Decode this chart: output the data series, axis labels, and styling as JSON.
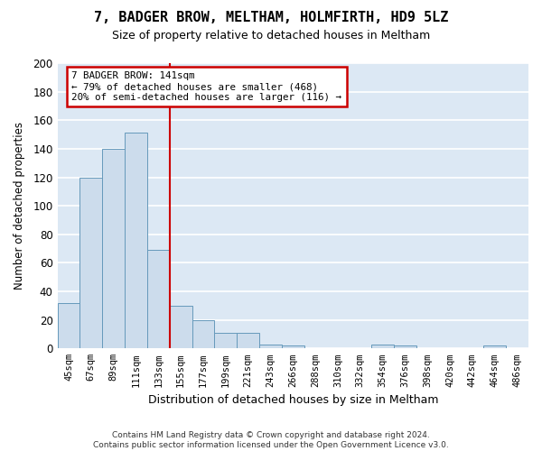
{
  "title1": "7, BADGER BROW, MELTHAM, HOLMFIRTH, HD9 5LZ",
  "title2": "Size of property relative to detached houses in Meltham",
  "xlabel": "Distribution of detached houses by size in Meltham",
  "ylabel": "Number of detached properties",
  "footer": "Contains HM Land Registry data © Crown copyright and database right 2024.\nContains public sector information licensed under the Open Government Licence v3.0.",
  "categories": [
    "45sqm",
    "67sqm",
    "89sqm",
    "111sqm",
    "133sqm",
    "155sqm",
    "177sqm",
    "199sqm",
    "221sqm",
    "243sqm",
    "266sqm",
    "288sqm",
    "310sqm",
    "332sqm",
    "354sqm",
    "376sqm",
    "398sqm",
    "420sqm",
    "442sqm",
    "464sqm",
    "486sqm"
  ],
  "values": [
    32,
    120,
    140,
    151,
    69,
    30,
    20,
    11,
    11,
    3,
    2,
    0,
    0,
    0,
    3,
    2,
    0,
    0,
    0,
    2,
    0
  ],
  "bar_color": "#ccdcec",
  "bar_edge_color": "#6699bb",
  "vline_x": 4.5,
  "vline_color": "#cc0000",
  "annotation_text": "7 BADGER BROW: 141sqm\n← 79% of detached houses are smaller (468)\n20% of semi-detached houses are larger (116) →",
  "annotation_box_color": "white",
  "annotation_box_edge_color": "#cc0000",
  "ylim": [
    0,
    200
  ],
  "yticks": [
    0,
    20,
    40,
    60,
    80,
    100,
    120,
    140,
    160,
    180,
    200
  ],
  "fig_background_color": "#ffffff",
  "plot_background_color": "#dce8f4",
  "grid_color": "#ffffff"
}
